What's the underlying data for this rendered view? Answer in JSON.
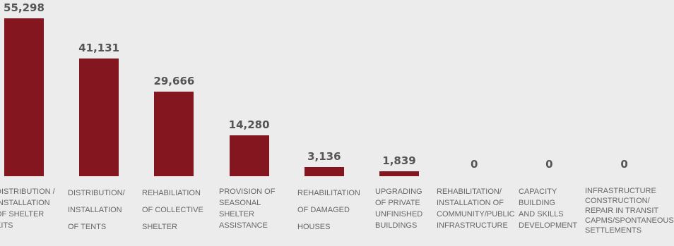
{
  "chart_data": {
    "type": "bar",
    "categories": [
      "DISTRIBUTION / INSTALLATION OF SHELTER KITS",
      "DISTRIBUTION/ INSTALLATION OF TENTS",
      "REHABILIATION OF COLLECTIVE SHELTER",
      "PROVISION OF SEASONAL SHELTER ASSISTANCE",
      "REHABILITATION OF DAMAGED HOUSES",
      "UPGRADING OF PRIVATE UNFINISHED BUILDINGS",
      "REHABILITATION/ INSTALLATION OF COMMUNITY/PUBLIC INFRASTRUCTURE",
      "CAPACITY BUILDING AND SKILLS DEVELOPMENT",
      "INFRASTRUCTURE CONSTRUCTION/ REPAIR IN TRANSIT CAPMS/SPONTANEOUS SETTLEMENTS"
    ],
    "category_lines": [
      [
        "DISTRIBUTION /",
        "INSTALLATION",
        "OF SHELTER",
        "KITS"
      ],
      [
        "DISTRIBUTION/",
        "INSTALLATION",
        "OF TENTS"
      ],
      [
        "REHABILIATION",
        "OF COLLECTIVE",
        "SHELTER"
      ],
      [
        "PROVISION OF",
        "SEASONAL",
        "SHELTER",
        "ASSISTANCE"
      ],
      [
        "REHABILITATION",
        "OF DAMAGED",
        "HOUSES"
      ],
      [
        "UPGRADING",
        "OF PRIVATE",
        "UNFINISHED",
        "BUILDINGS"
      ],
      [
        "REHABILITATION/",
        "INSTALLATION OF",
        "COMMUNITY/PUBLIC",
        "INFRASTRUCTURE"
      ],
      [
        "CAPACITY",
        "BUILDING",
        "AND SKILLS",
        "DEVELOPMENT"
      ],
      [
        "INFRASTRUCTURE",
        "CONSTRUCTION/",
        "REPAIR IN TRANSIT",
        "CAPMS/SPONTANEOUS",
        "SETTLEMENTS"
      ]
    ],
    "values": [
      55298,
      41131,
      29666,
      14280,
      3136,
      1839,
      0,
      0,
      0
    ],
    "value_labels": [
      "55,298",
      "41,131",
      "29,666",
      "14,280",
      "3,136",
      "1,839",
      "0",
      "0",
      "0"
    ],
    "bar_color": "#841620",
    "ylim": [
      0,
      55298
    ],
    "grid": false,
    "legend": "none"
  }
}
